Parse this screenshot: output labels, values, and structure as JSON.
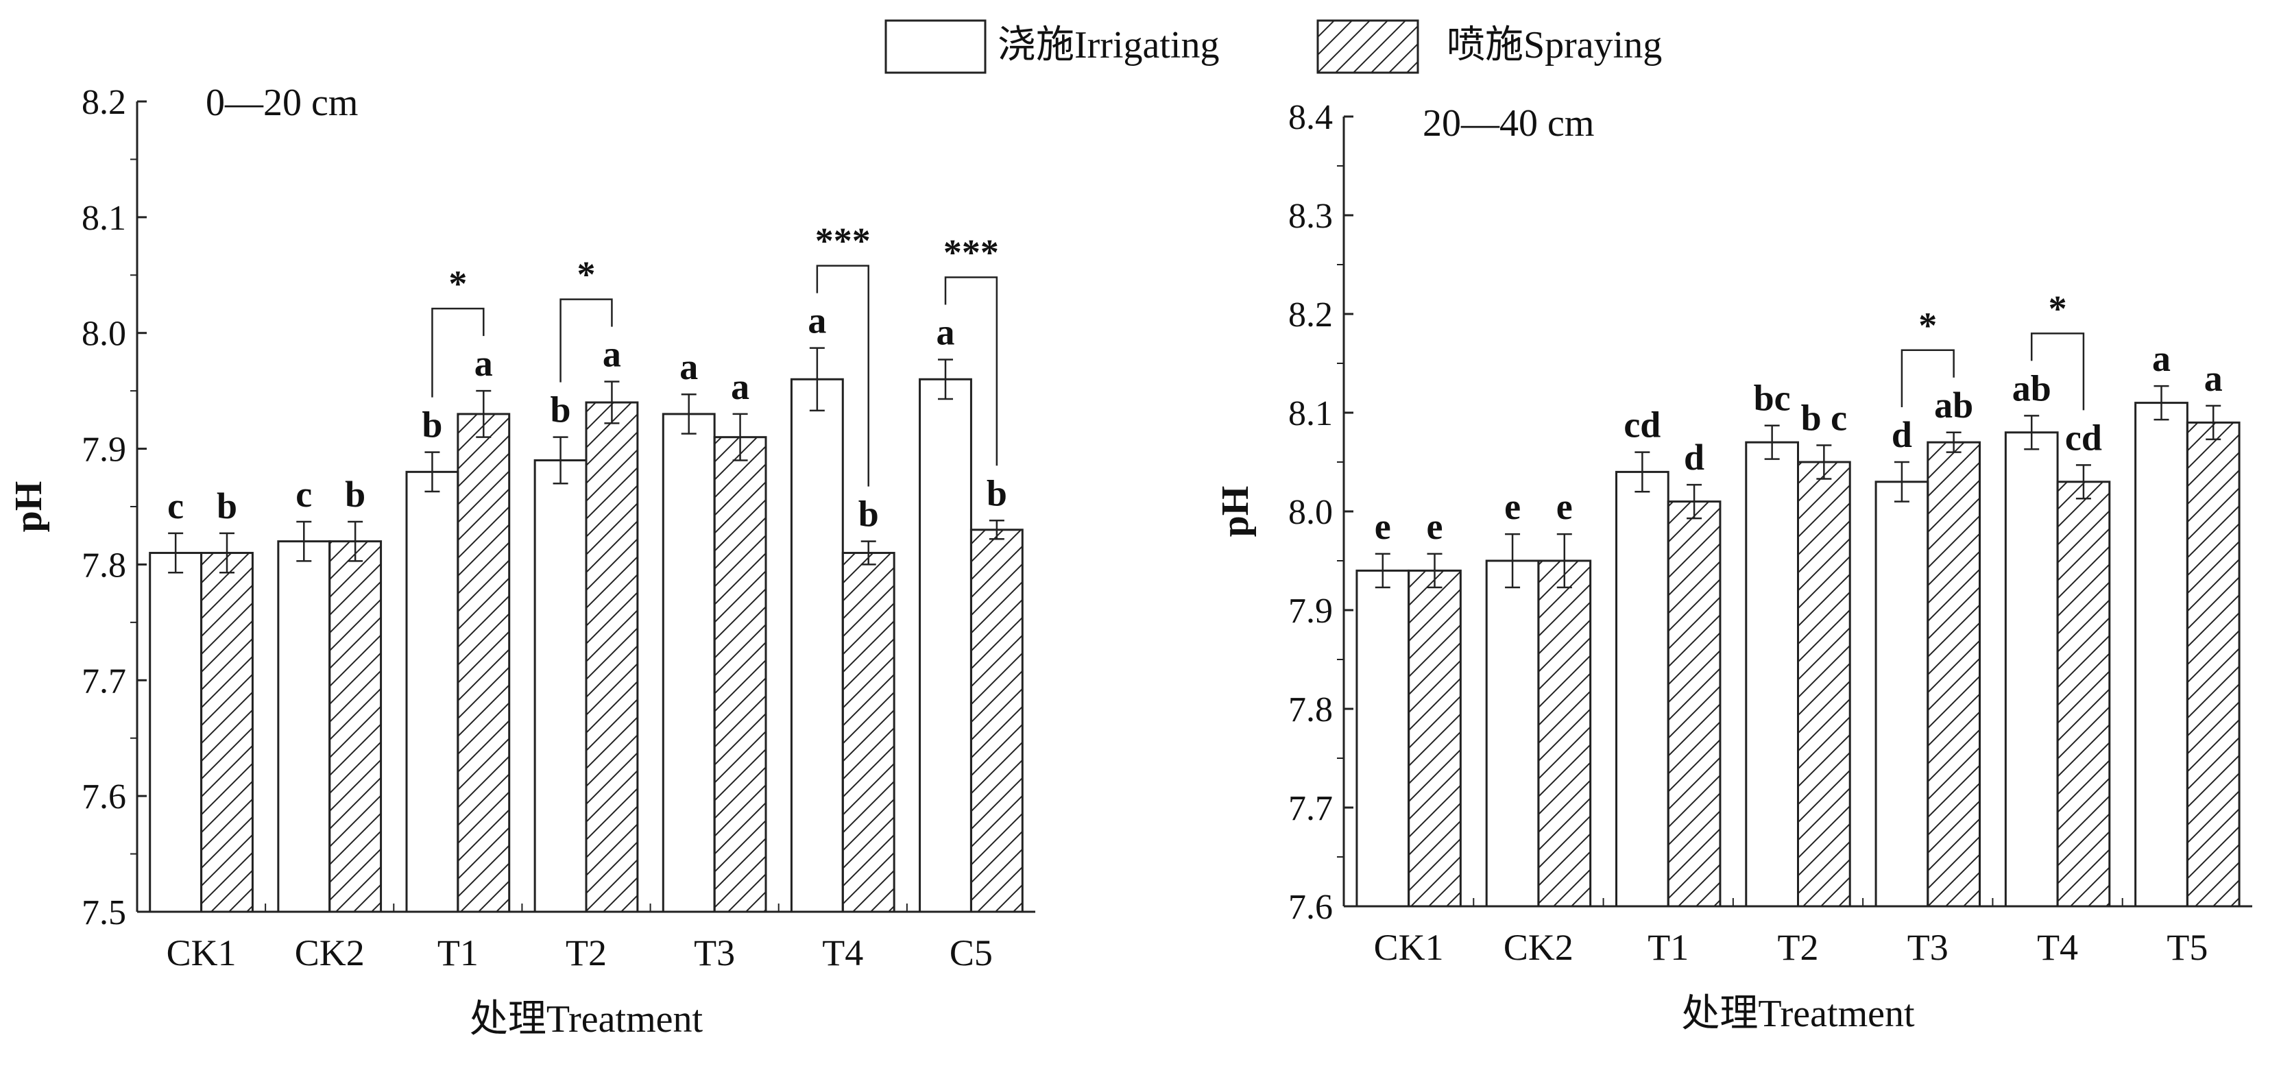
{
  "chart_data": [
    {
      "type": "bar",
      "panel_label": "0—20 cm",
      "xlabel": "处理Treatment",
      "ylabel": "pH",
      "ylim": [
        7.5,
        8.2
      ],
      "yticks": [
        "7.5",
        "7.6",
        "7.7",
        "7.8",
        "7.9",
        "8.0",
        "8.1",
        "8.2"
      ],
      "categories": [
        "CK1",
        "CK2",
        "T1",
        "T2",
        "T3",
        "T4",
        "C5"
      ],
      "series": [
        {
          "name": "浇施Irrigating",
          "values": [
            7.81,
            7.82,
            7.88,
            7.89,
            7.93,
            7.96,
            7.96
          ],
          "errors": [
            0.017,
            0.017,
            0.017,
            0.02,
            0.017,
            0.027,
            0.017
          ],
          "letters": [
            "c",
            "c",
            "b",
            "b",
            "a",
            "a",
            "a"
          ]
        },
        {
          "name": "喷施Spraying",
          "values": [
            7.81,
            7.82,
            7.93,
            7.94,
            7.91,
            7.81,
            7.83
          ],
          "errors": [
            0.017,
            0.017,
            0.02,
            0.018,
            0.02,
            0.01,
            0.008
          ],
          "letters": [
            "b",
            "b",
            "a",
            "a",
            "a",
            "b",
            "b"
          ]
        }
      ],
      "significance": [
        {
          "category": "T1",
          "mark": "*"
        },
        {
          "category": "T2",
          "mark": "*"
        },
        {
          "category": "T4",
          "mark": "***"
        },
        {
          "category": "C5",
          "mark": "***"
        }
      ]
    },
    {
      "type": "bar",
      "panel_label": "20—40 cm",
      "xlabel": "处理Treatment",
      "ylabel": "pH",
      "ylim": [
        7.6,
        8.4
      ],
      "yticks": [
        "7.6",
        "7.7",
        "7.8",
        "7.9",
        "8.0",
        "8.1",
        "8.2",
        "8.3",
        "8.4"
      ],
      "categories": [
        "CK1",
        "CK2",
        "T1",
        "T2",
        "T3",
        "T4",
        "T5"
      ],
      "series": [
        {
          "name": "浇施Irrigating",
          "values": [
            7.94,
            7.95,
            8.04,
            8.07,
            8.03,
            8.08,
            8.11
          ],
          "errors": [
            0.017,
            0.027,
            0.02,
            0.017,
            0.02,
            0.017,
            0.017
          ],
          "letters": [
            "e",
            "e",
            "cd",
            "bc",
            "d",
            "ab",
            "a"
          ]
        },
        {
          "name": "喷施Spraying",
          "values": [
            7.94,
            7.95,
            8.01,
            8.05,
            8.07,
            8.03,
            8.09
          ],
          "errors": [
            0.017,
            0.027,
            0.017,
            0.017,
            0.01,
            0.017,
            0.017
          ],
          "letters": [
            "e",
            "e",
            "d",
            "b c",
            "ab",
            "cd",
            "a"
          ]
        }
      ],
      "significance": [
        {
          "category": "T3",
          "mark": "*"
        },
        {
          "category": "T4",
          "mark": "*"
        }
      ]
    }
  ],
  "legend": {
    "items": [
      {
        "label": "浇施Irrigating",
        "pattern": "solid"
      },
      {
        "label": "喷施Spraying",
        "pattern": "hatch"
      }
    ]
  }
}
